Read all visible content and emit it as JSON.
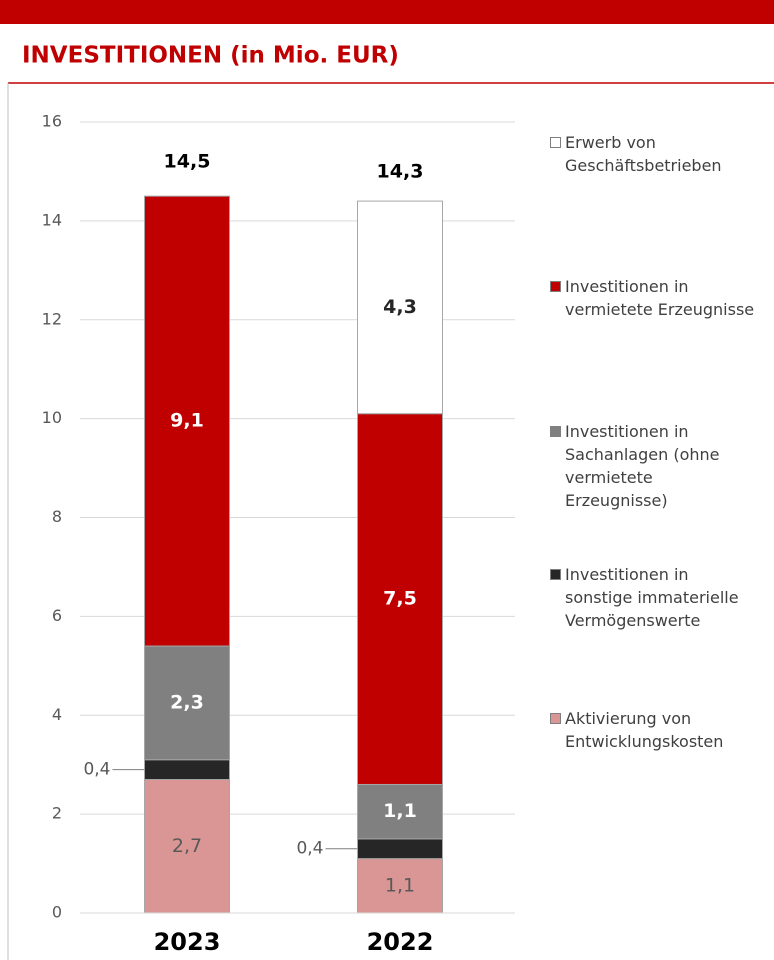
{
  "chart_data": {
    "type": "stacked_bar",
    "title": "INVESTITIONEN (in Mio. EUR)",
    "categories": [
      "2023",
      "2022"
    ],
    "series": [
      {
        "name": "Aktivierung von Entwicklungskosten",
        "color": "#d99694",
        "values": [
          2.7,
          1.1
        ],
        "value_labels": [
          "2,7",
          "1,1"
        ]
      },
      {
        "name": "Investitionen in sonstige immaterielle Vermögenswerte",
        "color": "#262626",
        "values": [
          0.4,
          0.4
        ],
        "value_labels": [
          "0,4",
          "0,4"
        ]
      },
      {
        "name": "Investitionen in Sachanlagen (ohne vermietete Erzeugnisse)",
        "color": "#808080",
        "values": [
          2.3,
          1.1
        ],
        "value_labels": [
          "2,3",
          "1,1"
        ]
      },
      {
        "name": "Investitionen in vermietete Erzeugnisse",
        "color": "#c00000",
        "values": [
          9.1,
          7.5
        ],
        "value_labels": [
          "9,1",
          "7,5"
        ]
      },
      {
        "name": "Erwerb von Geschäftsbetrieben",
        "color": "#ffffff",
        "values": [
          0,
          4.3
        ],
        "value_labels": [
          null,
          "4,3"
        ]
      }
    ],
    "totals": {
      "values": [
        14.5,
        14.3
      ],
      "value_labels": [
        "14,5",
        "14,3"
      ]
    },
    "ylim": [
      0,
      16
    ],
    "yticks": [
      0,
      2,
      4,
      6,
      8,
      10,
      12,
      14,
      16
    ],
    "grid": true
  }
}
